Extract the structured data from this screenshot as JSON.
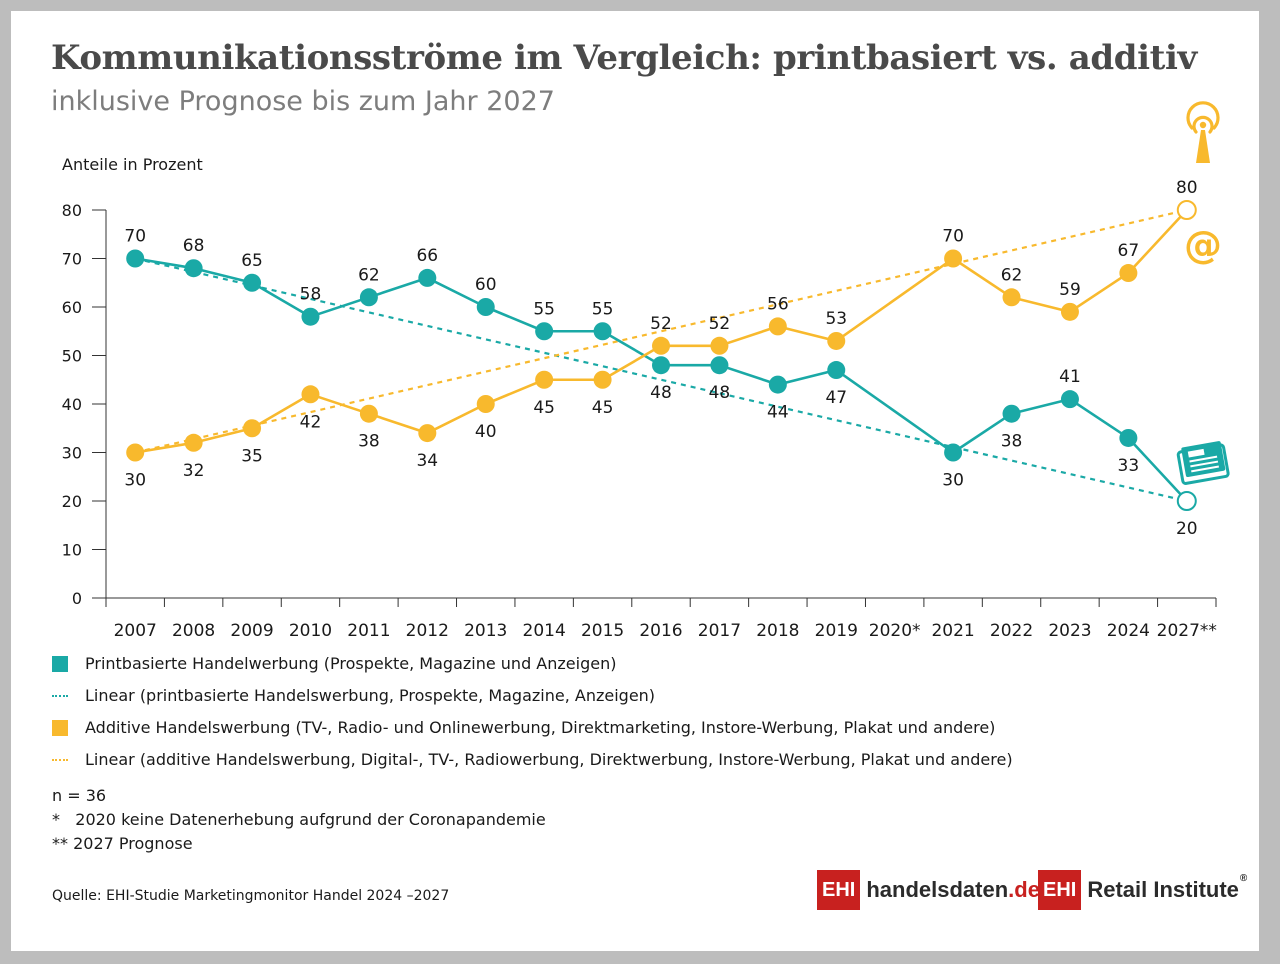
{
  "header": {
    "title": "Kommunikationsströme im Vergleich: printbasiert vs. additiv",
    "subtitle": "inklusive Prognose bis zum Jahr 2027"
  },
  "chart_data": {
    "type": "line",
    "ylabel": "Anteile in Prozent",
    "ylim": [
      0,
      80
    ],
    "yticks": [
      0,
      10,
      20,
      30,
      40,
      50,
      60,
      70,
      80
    ],
    "categories": [
      "2007",
      "2008",
      "2009",
      "2010",
      "2011",
      "2012",
      "2013",
      "2014",
      "2015",
      "2016",
      "2017",
      "2018",
      "2019",
      "2020*",
      "2021",
      "2022",
      "2023",
      "2024",
      "2027**"
    ],
    "series": [
      {
        "name": "Printbasierte Handelwerbung (Prospekte, Magazine und Anzeigen)",
        "color": "#1aa9a6",
        "values": [
          70,
          68,
          65,
          58,
          62,
          66,
          60,
          55,
          55,
          48,
          48,
          44,
          47,
          null,
          30,
          38,
          41,
          33,
          20
        ]
      },
      {
        "name": "Additive Handelswerbung (TV-, Radio- und Onlinewerbung, Direktmarketing, Instore-Werbung, Plakat und andere)",
        "color": "#f8b92d",
        "values": [
          30,
          32,
          35,
          42,
          38,
          34,
          40,
          45,
          45,
          52,
          52,
          56,
          53,
          null,
          70,
          62,
          59,
          67,
          80
        ]
      }
    ],
    "trendlines": [
      {
        "name": "Linear (printbasierte Handelswerbung, Prospekte, Magazine, Anzeigen)",
        "color": "#1aa9a6",
        "from": 70,
        "to": 20
      },
      {
        "name": "Linear (additive Handelswerbung, Digital-, TV-, Radiowerbung, Direktwerbung, Instore-Werbung, Plakat und andere)",
        "color": "#f8b92d",
        "from": 30,
        "to": 80
      }
    ],
    "icons": {
      "additive": [
        "radio-tower-icon",
        "at-sign-icon"
      ],
      "print": [
        "newspaper-icon"
      ]
    }
  },
  "legend": {
    "items": [
      {
        "label": "Printbasierte Handelwerbung (Prospekte, Magazine und Anzeigen)",
        "kind": "marker",
        "color": "#1aa9a6"
      },
      {
        "label": "Linear (printbasierte Handelswerbung, Prospekte, Magazine, Anzeigen)",
        "kind": "dash",
        "color": "#1aa9a6"
      },
      {
        "label": "Additive Handelswerbung (TV-, Radio- und Onlinewerbung, Direktmarketing, Instore-Werbung, Plakat und andere)",
        "kind": "marker",
        "color": "#f8b92d"
      },
      {
        "label": "Linear (additive Handelswerbung, Digital-, TV-, Radiowerbung, Direktwerbung, Instore-Werbung, Plakat und andere)",
        "kind": "dash",
        "color": "#f8b92d"
      }
    ]
  },
  "notes": {
    "n": "n = 36",
    "note1": "*   2020 keine Datenerhebung aufgrund der Coronapandemie",
    "note2": "** 2027 Prognose"
  },
  "footer": {
    "source": "Quelle: EHI-Studie Marketingmonitor Handel 2024 –2027",
    "logo1_mark": "EHI",
    "logo1_text": "handelsdaten",
    "logo1_suffix": ".de",
    "logo2_mark": "EHI",
    "logo2_text": "Retail Institute",
    "logo2_reg": "®",
    "logo_red": "#c8211f"
  }
}
